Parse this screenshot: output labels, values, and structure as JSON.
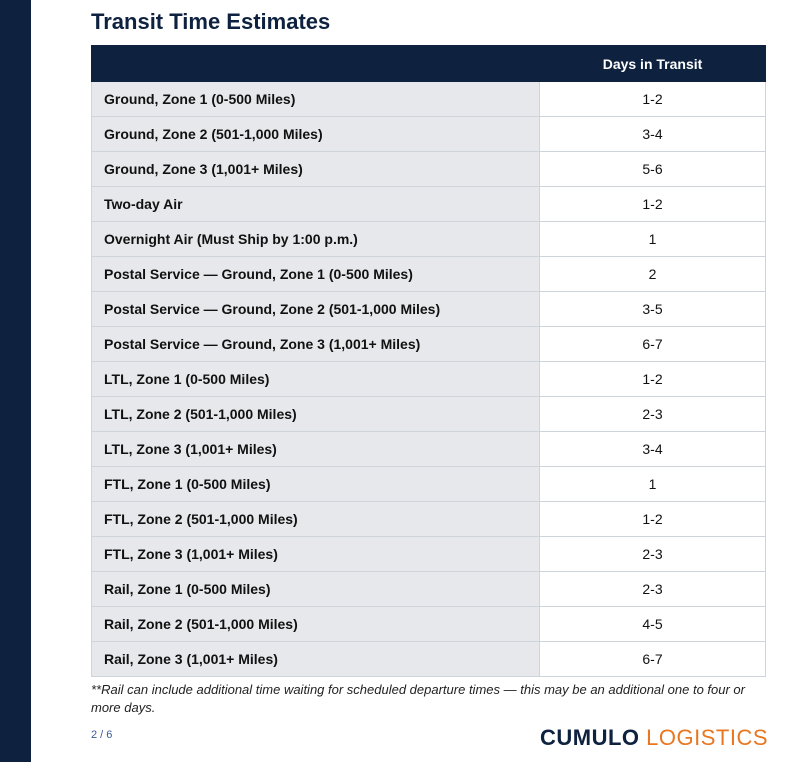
{
  "title": "Transit Time Estimates",
  "table": {
    "header_service": "",
    "header_days": "Days in Transit",
    "rows": [
      {
        "service": "Ground, Zone 1 (0-500 Miles)",
        "days": "1-2"
      },
      {
        "service": "Ground, Zone 2 (501-1,000 Miles)",
        "days": "3-4"
      },
      {
        "service": "Ground, Zone 3 (1,001+ Miles)",
        "days": "5-6"
      },
      {
        "service": "Two-day Air",
        "days": "1-2"
      },
      {
        "service": "Overnight Air (Must Ship by 1:00 p.m.)",
        "days": "1"
      },
      {
        "service": "Postal Service — Ground, Zone 1 (0-500 Miles)",
        "days": "2"
      },
      {
        "service": "Postal Service — Ground, Zone 2 (501-1,000 Miles)",
        "days": "3-5"
      },
      {
        "service": "Postal Service — Ground, Zone 3 (1,001+ Miles)",
        "days": "6-7"
      },
      {
        "service": "LTL, Zone 1 (0-500 Miles)",
        "days": "1-2"
      },
      {
        "service": "LTL, Zone 2 (501-1,000 Miles)",
        "days": "2-3"
      },
      {
        "service": "LTL, Zone 3 (1,001+ Miles)",
        "days": "3-4"
      },
      {
        "service": "FTL, Zone 1 (0-500 Miles)",
        "days": "1"
      },
      {
        "service": "FTL, Zone 2 (501-1,000 Miles)",
        "days": "1-2"
      },
      {
        "service": "FTL, Zone 3 (1,001+ Miles)",
        "days": "2-3"
      },
      {
        "service": "Rail, Zone 1 (0-500 Miles)",
        "days": "2-3"
      },
      {
        "service": "Rail, Zone 2 (501-1,000 Miles)",
        "days": "4-5"
      },
      {
        "service": "Rail, Zone 3 (1,001+ Miles)",
        "days": "6-7"
      }
    ]
  },
  "footnote": "**Rail can include additional time waiting for scheduled departure times — this may be an additional one to four or more days.",
  "page_number": "2 / 6",
  "brand": {
    "part1": "CUMULO",
    "part2": "LOGISTICS"
  },
  "colors": {
    "navy": "#0e2240",
    "orange": "#e87722",
    "row_gray": "#e6e8eb"
  }
}
